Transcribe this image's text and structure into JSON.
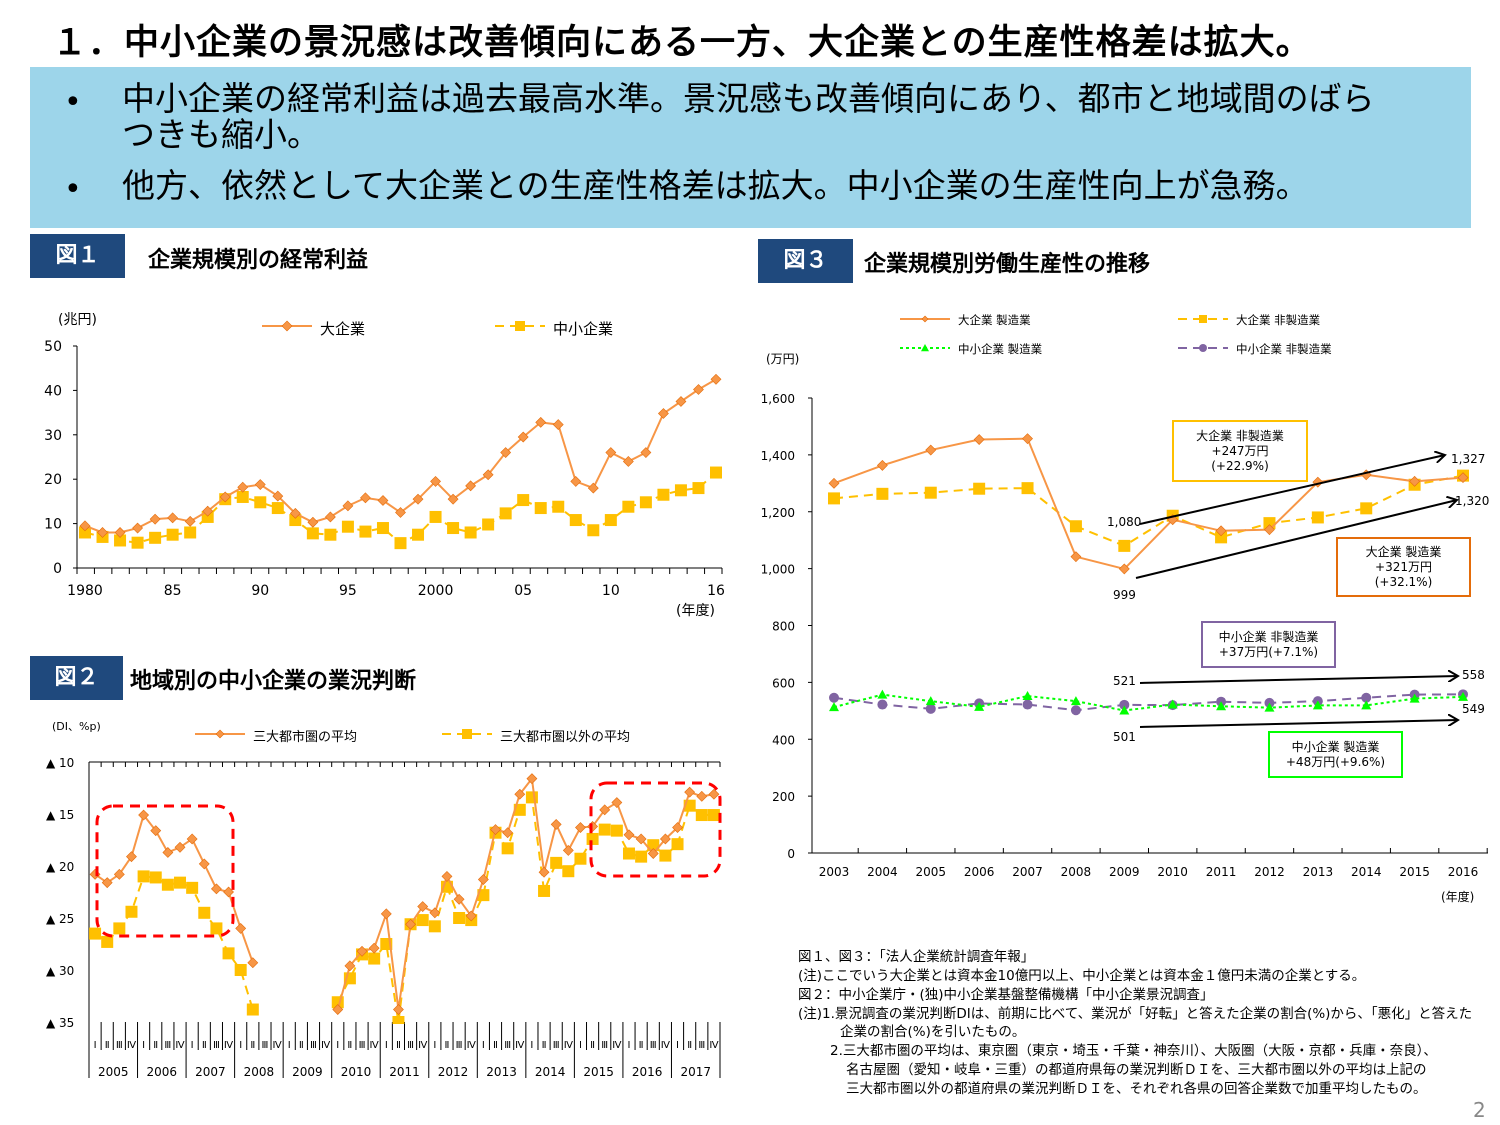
{
  "title": "１．中小企業の景況感は改善傾向にある一方、大企業との生産性格差は拡大。",
  "summary": {
    "bullets": [
      "中小企業の経常利益は過去最高水準。景況感も改善傾向にあり、都市と地域間のばら",
      "つきも縮小。",
      "他方、依然として大企業との生産性格差は拡大。中小企業の生産性向上が急務。"
    ],
    "bullet_symbol": "•",
    "background_color": "#9dd5ea"
  },
  "figures": {
    "fig1": {
      "label": "図１",
      "title": "企業規模別の経常利益"
    },
    "fig2": {
      "label": "図２",
      "title": "地域別の中小企業の業況判断"
    },
    "fig3": {
      "label": "図３",
      "title": "企業規模別労働生産性の推移"
    }
  },
  "chart_data": [
    {
      "type": "line",
      "unit": "(兆円)",
      "xlabel": "(年度)",
      "ylim": [
        0,
        50
      ],
      "yticks": [
        0,
        10,
        20,
        30,
        40,
        50
      ],
      "x": [
        1980,
        1981,
        1982,
        1983,
        1984,
        1985,
        1986,
        1987,
        1988,
        1989,
        1990,
        1991,
        1992,
        1993,
        1994,
        1995,
        1996,
        1997,
        1998,
        1999,
        2000,
        2001,
        2002,
        2003,
        2004,
        2005,
        2006,
        2007,
        2008,
        2009,
        2010,
        2011,
        2012,
        2013,
        2014,
        2015,
        2016
      ],
      "xtick_labels": [
        {
          "year": 1980,
          "label": "1980"
        },
        {
          "year": 1985,
          "label": "85"
        },
        {
          "year": 1990,
          "label": "90"
        },
        {
          "year": 1995,
          "label": "95"
        },
        {
          "year": 2000,
          "label": "2000"
        },
        {
          "year": 2005,
          "label": "05"
        },
        {
          "year": 2010,
          "label": "10"
        },
        {
          "year": 2016,
          "label": "16"
        }
      ],
      "legend": "top",
      "series": [
        {
          "name": "大企業",
          "color": "#f79646",
          "marker": "diamond",
          "dash": "solid",
          "values": [
            9.5,
            8,
            8,
            9,
            11,
            11.3,
            10.5,
            12.8,
            16,
            18.2,
            18.8,
            16.2,
            12.3,
            10.3,
            11.5,
            14,
            15.8,
            15.2,
            12.5,
            15.5,
            19.5,
            15.5,
            18.5,
            21,
            26,
            29.5,
            32.8,
            32.3,
            19.5,
            18,
            26,
            24,
            26,
            34.8,
            37.5,
            40.2,
            42.5
          ]
        },
        {
          "name": "中小企業",
          "color": "#ffc000",
          "marker": "square",
          "dash": "dashed",
          "values": [
            8,
            7,
            6.2,
            5.7,
            6.8,
            7.5,
            8,
            11.5,
            15.5,
            16,
            14.8,
            13.5,
            10.8,
            7.8,
            7.5,
            9.3,
            8.2,
            9,
            5.6,
            7.5,
            11.5,
            9,
            8,
            9.8,
            12.3,
            15.3,
            13.5,
            13.8,
            10.8,
            8.5,
            10.8,
            13.8,
            14.8,
            16.5,
            17.5,
            18,
            21.5
          ]
        }
      ]
    },
    {
      "type": "line",
      "unit": "(DI、%p)",
      "ylim": [
        -10,
        -35
      ],
      "y_reversed": true,
      "yticks": [
        {
          "value": -10,
          "label": "▲ 10"
        },
        {
          "value": -15,
          "label": "▲ 15"
        },
        {
          "value": -20,
          "label": "▲ 20"
        },
        {
          "value": -25,
          "label": "▲ 25"
        },
        {
          "value": -30,
          "label": "▲ 30"
        },
        {
          "value": -35,
          "label": "▲ 35"
        }
      ],
      "quarter_labels": [
        "Ⅰ",
        "Ⅱ",
        "Ⅲ",
        "Ⅳ"
      ],
      "years": [
        "2005",
        "2006",
        "2007",
        "2008",
        "2009",
        "2010",
        "2011",
        "2012",
        "2013",
        "2014",
        "2015",
        "2016",
        "2017"
      ],
      "legend": "top",
      "highlight_color": "#ff0000",
      "series": [
        {
          "name": "三大都市圏の平均",
          "color": "#f79646",
          "marker": "diamond",
          "dash": "solid",
          "values": [
            -20.8,
            -21.6,
            -20.8,
            -19.1,
            -15.1,
            -16.6,
            -18.7,
            -18.2,
            -17.4,
            -19.8,
            -22.2,
            -22.5,
            -26,
            -29.3,
            null,
            null,
            null,
            null,
            null,
            null,
            -33.8,
            -29.6,
            -28.2,
            -27.9,
            -24.6,
            -33.8,
            -25.6,
            -23.9,
            -24.5,
            -21,
            -23.2,
            -24.8,
            -21.3,
            -16.5,
            -16.8,
            -13.1,
            -11.6,
            -20.6,
            -16,
            -18.5,
            -16.3,
            -16.2,
            -14.6,
            -13.9,
            -17,
            -17.4,
            -18.8,
            -17.4,
            -16.3,
            -12.9,
            -13.3,
            -13.1
          ]
        },
        {
          "name": "三大都市圏以外の平均",
          "color": "#ffc000",
          "marker": "square",
          "dash": "dashed",
          "values": [
            -26.5,
            -27.3,
            -26,
            -24.4,
            -21,
            -21.1,
            -21.8,
            -21.6,
            -22.1,
            -24.5,
            -26,
            -28.4,
            -30,
            -33.8,
            null,
            null,
            null,
            null,
            null,
            null,
            -33.1,
            -30.8,
            -28.5,
            -28.9,
            -27.5,
            -35,
            -25.6,
            -25.2,
            -25.8,
            -22,
            -25,
            -25.2,
            -22.8,
            -16.8,
            -18.3,
            -14.6,
            -13.4,
            -22.4,
            -19.7,
            -20.5,
            -19.3,
            -17.4,
            -16.5,
            -16.6,
            -18.8,
            -19.1,
            -18,
            -19,
            -17.9,
            -14.2,
            -15.1,
            -15.1
          ]
        }
      ]
    },
    {
      "type": "line",
      "unit": "(万円)",
      "xlabel": "(年度)",
      "ylim": [
        0,
        1600
      ],
      "yticks": [
        {
          "value": 0,
          "label": "0"
        },
        {
          "value": 200,
          "label": "200"
        },
        {
          "value": 400,
          "label": "400"
        },
        {
          "value": 600,
          "label": "600"
        },
        {
          "value": 800,
          "label": "800"
        },
        {
          "value": 1000,
          "label": "1,000"
        },
        {
          "value": 1200,
          "label": "1,200"
        },
        {
          "value": 1400,
          "label": "1,400"
        },
        {
          "value": 1600,
          "label": "1,600"
        }
      ],
      "x": [
        "2003",
        "2004",
        "2005",
        "2006",
        "2007",
        "2008",
        "2009",
        "2010",
        "2011",
        "2012",
        "2013",
        "2014",
        "2015",
        "2016"
      ],
      "legend": "top",
      "series": [
        {
          "name": "大企業 製造業",
          "color": "#f79646",
          "marker": "diamond",
          "dash": "solid",
          "values": [
            1300,
            1363,
            1417,
            1454,
            1457,
            1042,
            999,
            1172,
            1133,
            1137,
            1304,
            1330,
            1307,
            1320
          ]
        },
        {
          "name": "大企業 非製造業",
          "color": "#ffc000",
          "marker": "square",
          "dash": "dashed",
          "values": [
            1247,
            1263,
            1267,
            1281,
            1283,
            1149,
            1080,
            1186,
            1110,
            1160,
            1180,
            1212,
            1295,
            1327
          ]
        },
        {
          "name": "中小企業 製造業",
          "color": "#00ff00",
          "marker": "triangle",
          "dash": "dotted",
          "values": [
            513,
            557,
            534,
            514,
            552,
            534,
            501,
            522,
            516,
            511,
            519,
            519,
            543,
            549
          ]
        },
        {
          "name": "中小企業 非製造業",
          "color": "#8064a2",
          "marker": "circle",
          "dash": "dashed",
          "values": [
            546,
            522,
            507,
            526,
            522,
            502,
            521,
            520,
            532,
            528,
            534,
            546,
            557,
            558
          ]
        }
      ],
      "data_labels": {
        "lg_nonmfg_2009": "1,080",
        "lg_mfg_2009": "999",
        "lg_nonmfg_2016": "1,327",
        "lg_mfg_2016": "1,320",
        "sme_nonmfg_2009": "521",
        "sme_mfg_2009": "501",
        "sme_nonmfg_2016": "558",
        "sme_mfg_2016": "549"
      },
      "annotations": [
        {
          "lines": [
            "大企業 非製造業",
            "+247万円",
            "(+22.9%)"
          ],
          "color": "#ffc000"
        },
        {
          "lines": [
            "大企業 製造業",
            "+321万円",
            "(+32.1%)"
          ],
          "color": "#e46c0a"
        },
        {
          "lines": [
            "中小企業 非製造業",
            "+37万円(+7.1%)"
          ],
          "color": "#8064a2"
        },
        {
          "lines": [
            "中小企業 製造業",
            "+48万円(+9.6%)"
          ],
          "color": "#00ff00"
        }
      ]
    }
  ],
  "notes": [
    "図１、図３：「法人企業統計調査年報」",
    "(注)ここでいう大企業とは資本金10億円以上、中小企業とは資本金１億円未満の企業とする。",
    "図２：中小企業庁・(独)中小企業基盤整備機構「中小企業景況調査」",
    "(注)1.景況調査の業況判断DIは、前期に比べて、業況が「好転」と答えた企業の割合(%)から、「悪化」と答えた",
    "企業の割合(%)を引いたもの。",
    "2.三大都市圏の平均は、東京圏（東京・埼玉・千葉・神奈川）、大阪圏（大阪・京都・兵庫・奈良）、",
    "名古屋圏（愛知・岐阜・三重）の都道府県毎の業況判断ＤＩを、三大都市圏以外の平均は上記の",
    "三大都市圏以外の都道府県の業況判断ＤＩを、それぞれ各県の回答企業数で加重平均したもの。"
  ],
  "page_number": "2"
}
